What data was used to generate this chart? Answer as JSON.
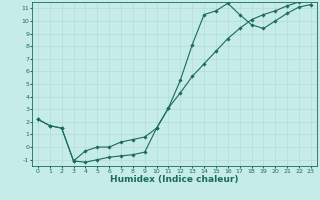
{
  "xlabel": "Humidex (Indice chaleur)",
  "xlim": [
    -0.5,
    23.5
  ],
  "ylim": [
    -1.5,
    11.5
  ],
  "xticks": [
    0,
    1,
    2,
    3,
    4,
    5,
    6,
    7,
    8,
    9,
    10,
    11,
    12,
    13,
    14,
    15,
    16,
    17,
    18,
    19,
    20,
    21,
    22,
    23
  ],
  "yticks": [
    -1,
    0,
    1,
    2,
    3,
    4,
    5,
    6,
    7,
    8,
    9,
    10,
    11
  ],
  "bg_color": "#c6ece8",
  "grid_color": "#b0d8d2",
  "line_color": "#1a6b5a",
  "line1_x": [
    0,
    1,
    2,
    3,
    4,
    5,
    6,
    7,
    8,
    9,
    10,
    11,
    12,
    13,
    14,
    15,
    16,
    17,
    18,
    19,
    20,
    21,
    22,
    23
  ],
  "line1_y": [
    2.2,
    1.7,
    1.5,
    -1.1,
    -1.2,
    -1.0,
    -0.8,
    -0.7,
    -0.6,
    -0.4,
    1.5,
    3.1,
    5.3,
    8.1,
    10.5,
    10.8,
    11.4,
    10.5,
    9.7,
    9.4,
    10.0,
    10.6,
    11.1,
    11.3
  ],
  "line2_x": [
    0,
    1,
    2,
    3,
    4,
    5,
    6,
    7,
    8,
    9,
    10,
    11,
    12,
    13,
    14,
    15,
    16,
    17,
    18,
    19,
    20,
    21,
    22,
    23
  ],
  "line2_y": [
    2.2,
    1.7,
    1.5,
    -1.1,
    -0.3,
    0.0,
    0.0,
    0.4,
    0.6,
    0.8,
    1.5,
    3.1,
    4.3,
    5.6,
    6.6,
    7.6,
    8.6,
    9.4,
    10.1,
    10.5,
    10.8,
    11.2,
    11.5,
    11.6
  ],
  "marker": "D",
  "markersize": 1.8,
  "linewidth": 0.8,
  "tick_fontsize": 4.5,
  "xlabel_fontsize": 6.5
}
